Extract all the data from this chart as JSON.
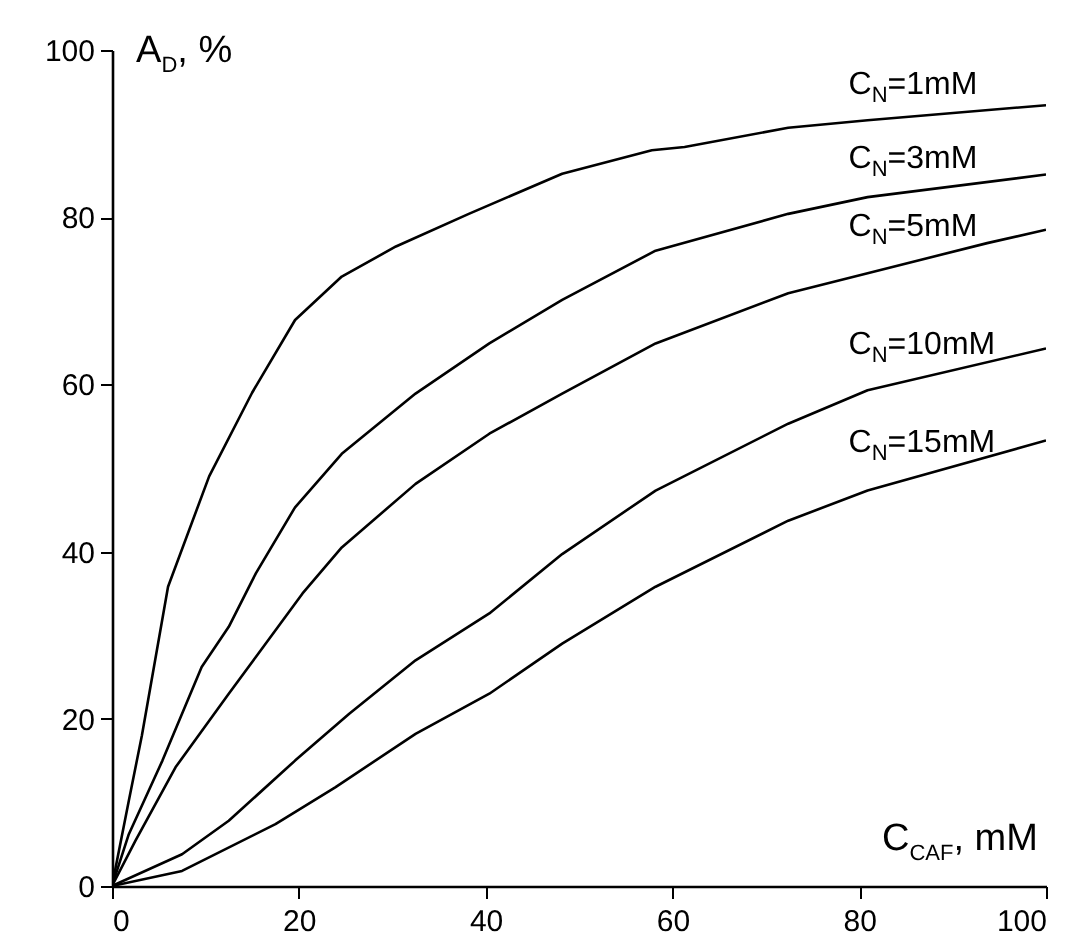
{
  "chart_data": {
    "type": "line",
    "xlabel": "C$_{CAF}$, mM",
    "ylabel": "A$_{D}$, %",
    "xlim": [
      0,
      100
    ],
    "ylim": [
      0,
      100
    ],
    "xticks": [
      0,
      20,
      40,
      60,
      80,
      100
    ],
    "yticks": [
      0,
      20,
      40,
      60,
      80,
      100
    ],
    "series": [
      {
        "name": "C$_{N}$=1mM",
        "color": "#000000",
        "x": [
          0,
          1.8,
          3.2,
          6,
          10.4,
          15,
          19.6,
          24.6,
          30.4,
          38.2,
          48.2,
          57.8,
          61.3,
          72.4,
          80.9,
          100
        ],
        "values": [
          0,
          10.2,
          18,
          35.8,
          49,
          59,
          67.7,
          72.9,
          76.5,
          80.4,
          85.2,
          88,
          88.4,
          90.7,
          91.6,
          93.4
        ]
      },
      {
        "name": "C$_{N}$=3mM",
        "color": "#000000",
        "x": [
          0,
          1.8,
          5.4,
          9.6,
          12.5,
          15.4,
          19.6,
          24.6,
          32.5,
          40.4,
          48.2,
          58.2,
          72.4,
          80.9,
          100
        ],
        "values": [
          0,
          6.2,
          15,
          26.2,
          31,
          37.4,
          45.3,
          51.7,
          58.9,
          64.9,
          70.1,
          76,
          80.4,
          82.4,
          85.1
        ]
      },
      {
        "name": "C$_{N}$=5mM",
        "color": "#000000",
        "x": [
          0,
          2.5,
          6.8,
          12.5,
          15.4,
          20.4,
          24.6,
          32.5,
          40.4,
          48.2,
          58.2,
          72.4,
          80.9,
          93.7,
          100
        ],
        "values": [
          0,
          5.4,
          14.2,
          23,
          27.4,
          35,
          40.5,
          48.1,
          54.1,
          58.9,
          64.9,
          70.9,
          73.3,
          76.9,
          78.5
        ]
      },
      {
        "name": "C$_{N}$=10mM",
        "color": "#000000",
        "x": [
          0,
          7.5,
          12.5,
          19.6,
          25.4,
          32.5,
          40.4,
          48.2,
          58.2,
          72.4,
          80.9,
          100
        ],
        "values": [
          0,
          3.8,
          7.8,
          15,
          20.6,
          27,
          32.6,
          39.7,
          47.3,
          55.3,
          59.3,
          64.3
        ]
      },
      {
        "name": "C$_{N}$=15mM",
        "color": "#000000",
        "x": [
          0,
          7.5,
          17.5,
          23.9,
          32.5,
          40.4,
          48.2,
          58.2,
          72.4,
          80.9,
          100
        ],
        "values": [
          0,
          1.8,
          7.4,
          11.8,
          18.2,
          23,
          29,
          35.8,
          43.7,
          47.3,
          53.3
        ]
      }
    ]
  }
}
